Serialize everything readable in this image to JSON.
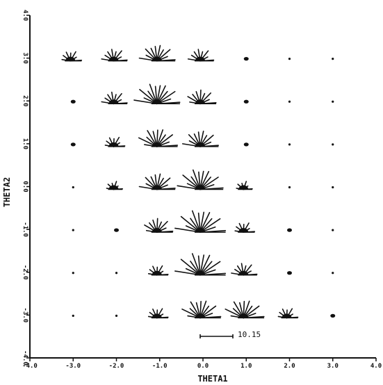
{
  "chart_data": {
    "type": "scatter",
    "title": "",
    "xlabel": "THETA1",
    "ylabel": "THETA2",
    "xlim": [
      -4.0,
      4.0
    ],
    "ylim": [
      -4.0,
      4.0
    ],
    "x_ticks": [
      "-4.0",
      "-3.0",
      "-2.0",
      "-1.0",
      "0.0",
      "1.0",
      "2.0",
      "3.0",
      "4.0"
    ],
    "y_ticks": [
      "-4.0",
      "-3.0",
      "-2.0",
      "-1.0",
      "0.0",
      "1.0",
      "2.0",
      "3.0",
      "4.0"
    ],
    "grid": false,
    "scale_bar_label": "10.15",
    "scale_bar_value": 10.15,
    "colors": {
      "ink": "#111111",
      "background": "#ffffff"
    },
    "glyphs": [
      {
        "x": -3.0,
        "y": 3.0,
        "size": 3
      },
      {
        "x": -2.0,
        "y": 3.0,
        "size": 4
      },
      {
        "x": -1.0,
        "y": 3.0,
        "size": 6
      },
      {
        "x": 0.0,
        "y": 3.0,
        "size": 4
      },
      {
        "x": 1.0,
        "y": 3.0,
        "size": 1
      },
      {
        "x": 2.0,
        "y": 3.0,
        "size": 0
      },
      {
        "x": 3.0,
        "y": 3.0,
        "size": 0
      },
      {
        "x": -3.0,
        "y": 2.0,
        "size": 1
      },
      {
        "x": -2.0,
        "y": 2.0,
        "size": 4
      },
      {
        "x": -1.0,
        "y": 2.0,
        "size": 8
      },
      {
        "x": 0.0,
        "y": 2.0,
        "size": 5
      },
      {
        "x": 1.0,
        "y": 2.0,
        "size": 1
      },
      {
        "x": 2.0,
        "y": 2.0,
        "size": 0
      },
      {
        "x": 3.0,
        "y": 2.0,
        "size": 0
      },
      {
        "x": -3.0,
        "y": 1.0,
        "size": 1
      },
      {
        "x": -2.0,
        "y": 1.0,
        "size": 3
      },
      {
        "x": -1.0,
        "y": 1.0,
        "size": 7
      },
      {
        "x": 0.0,
        "y": 1.0,
        "size": 6
      },
      {
        "x": 1.0,
        "y": 1.0,
        "size": 1
      },
      {
        "x": 2.0,
        "y": 1.0,
        "size": 0
      },
      {
        "x": 3.0,
        "y": 1.0,
        "size": 0
      },
      {
        "x": -3.0,
        "y": 0.0,
        "size": 0
      },
      {
        "x": -2.0,
        "y": 0.0,
        "size": 2
      },
      {
        "x": -1.0,
        "y": 0.0,
        "size": 6
      },
      {
        "x": 0.0,
        "y": 0.0,
        "size": 8
      },
      {
        "x": 1.0,
        "y": 0.0,
        "size": 2
      },
      {
        "x": 2.0,
        "y": 0.0,
        "size": 0
      },
      {
        "x": 3.0,
        "y": 0.0,
        "size": 0
      },
      {
        "x": -3.0,
        "y": -1.0,
        "size": 0
      },
      {
        "x": -2.0,
        "y": -1.0,
        "size": 1
      },
      {
        "x": -1.0,
        "y": -1.0,
        "size": 5
      },
      {
        "x": 0.0,
        "y": -1.0,
        "size": 9
      },
      {
        "x": 1.0,
        "y": -1.0,
        "size": 3
      },
      {
        "x": 2.0,
        "y": -1.0,
        "size": 1
      },
      {
        "x": 3.0,
        "y": -1.0,
        "size": 0
      },
      {
        "x": -3.0,
        "y": -2.0,
        "size": 0
      },
      {
        "x": -2.0,
        "y": -2.0,
        "size": 0
      },
      {
        "x": -1.0,
        "y": -2.0,
        "size": 3
      },
      {
        "x": 0.0,
        "y": -2.0,
        "size": 9
      },
      {
        "x": 1.0,
        "y": -2.0,
        "size": 4
      },
      {
        "x": 2.0,
        "y": -2.0,
        "size": 1
      },
      {
        "x": 3.0,
        "y": -2.0,
        "size": 0
      },
      {
        "x": -3.0,
        "y": -3.0,
        "size": 0
      },
      {
        "x": -2.0,
        "y": -3.0,
        "size": 0
      },
      {
        "x": -1.0,
        "y": -3.0,
        "size": 3
      },
      {
        "x": 0.0,
        "y": -3.0,
        "size": 7
      },
      {
        "x": 1.0,
        "y": -3.0,
        "size": 7
      },
      {
        "x": 2.0,
        "y": -3.0,
        "size": 3
      },
      {
        "x": 3.0,
        "y": -3.0,
        "size": 1
      }
    ]
  }
}
